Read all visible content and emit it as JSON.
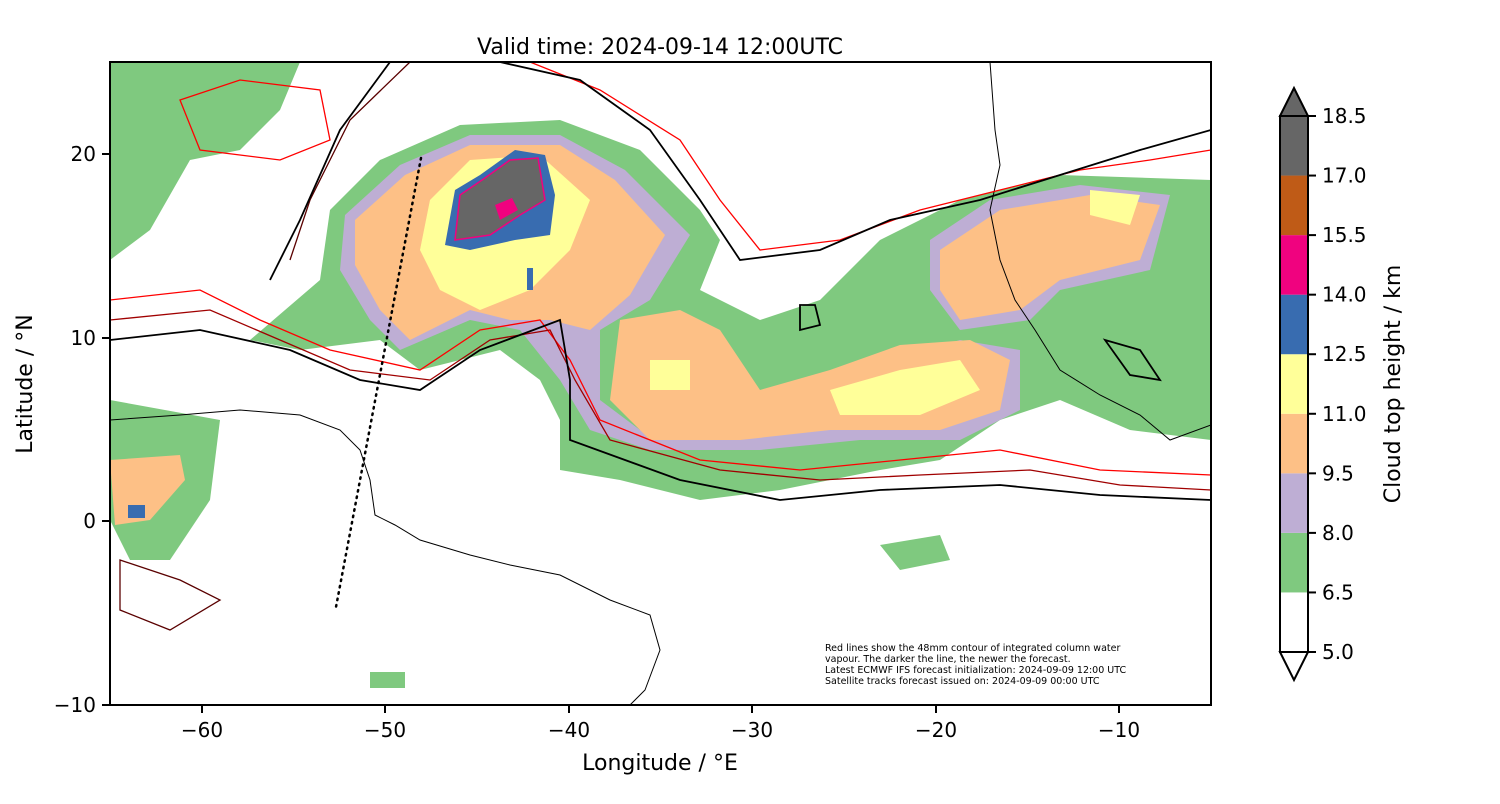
{
  "title": "Valid time: 2024-09-14 12:00UTC",
  "chart_data": {
    "type": "heatmap",
    "title": "Valid time: 2024-09-14 12:00UTC",
    "xlabel": "Longitude / °E",
    "ylabel": "Latitude / °N",
    "xlim": [
      -65,
      -5
    ],
    "ylim": [
      -10,
      25
    ],
    "xticks": [
      -60,
      -50,
      -40,
      -30,
      -20,
      -10
    ],
    "yticks": [
      -10,
      0,
      10,
      20
    ],
    "xtick_labels": [
      "−60",
      "−50",
      "−40",
      "−30",
      "−20",
      "−10"
    ],
    "ytick_labels": [
      "−10",
      "0",
      "10",
      "20"
    ],
    "colorbar": {
      "label": "Cloud top height / km",
      "levels": [
        5.0,
        6.5,
        8.0,
        9.5,
        11.0,
        12.5,
        14.0,
        15.5,
        17.0,
        18.5
      ],
      "level_labels": [
        "5.0",
        "6.5",
        "8.0",
        "9.5",
        "11.0",
        "12.5",
        "14.0",
        "15.5",
        "17.0",
        "18.5"
      ],
      "colors": [
        "#ffffff",
        "#7fc97f",
        "#beaed4",
        "#fdc086",
        "#ffff99",
        "#386cb0",
        "#f0027f",
        "#bf5b17",
        "#666666"
      ],
      "extend": "both"
    },
    "annotation": [
      "Red lines show the 48mm contour of integrated column water",
      "vapour. The darker the line, the newer the forecast.",
      "Latest ECMWF IFS forecast initialization: 2024-09-09 12:00 UTC",
      "Satellite tracks forecast issued on: 2024-09-09 00:00 UTC"
    ]
  }
}
